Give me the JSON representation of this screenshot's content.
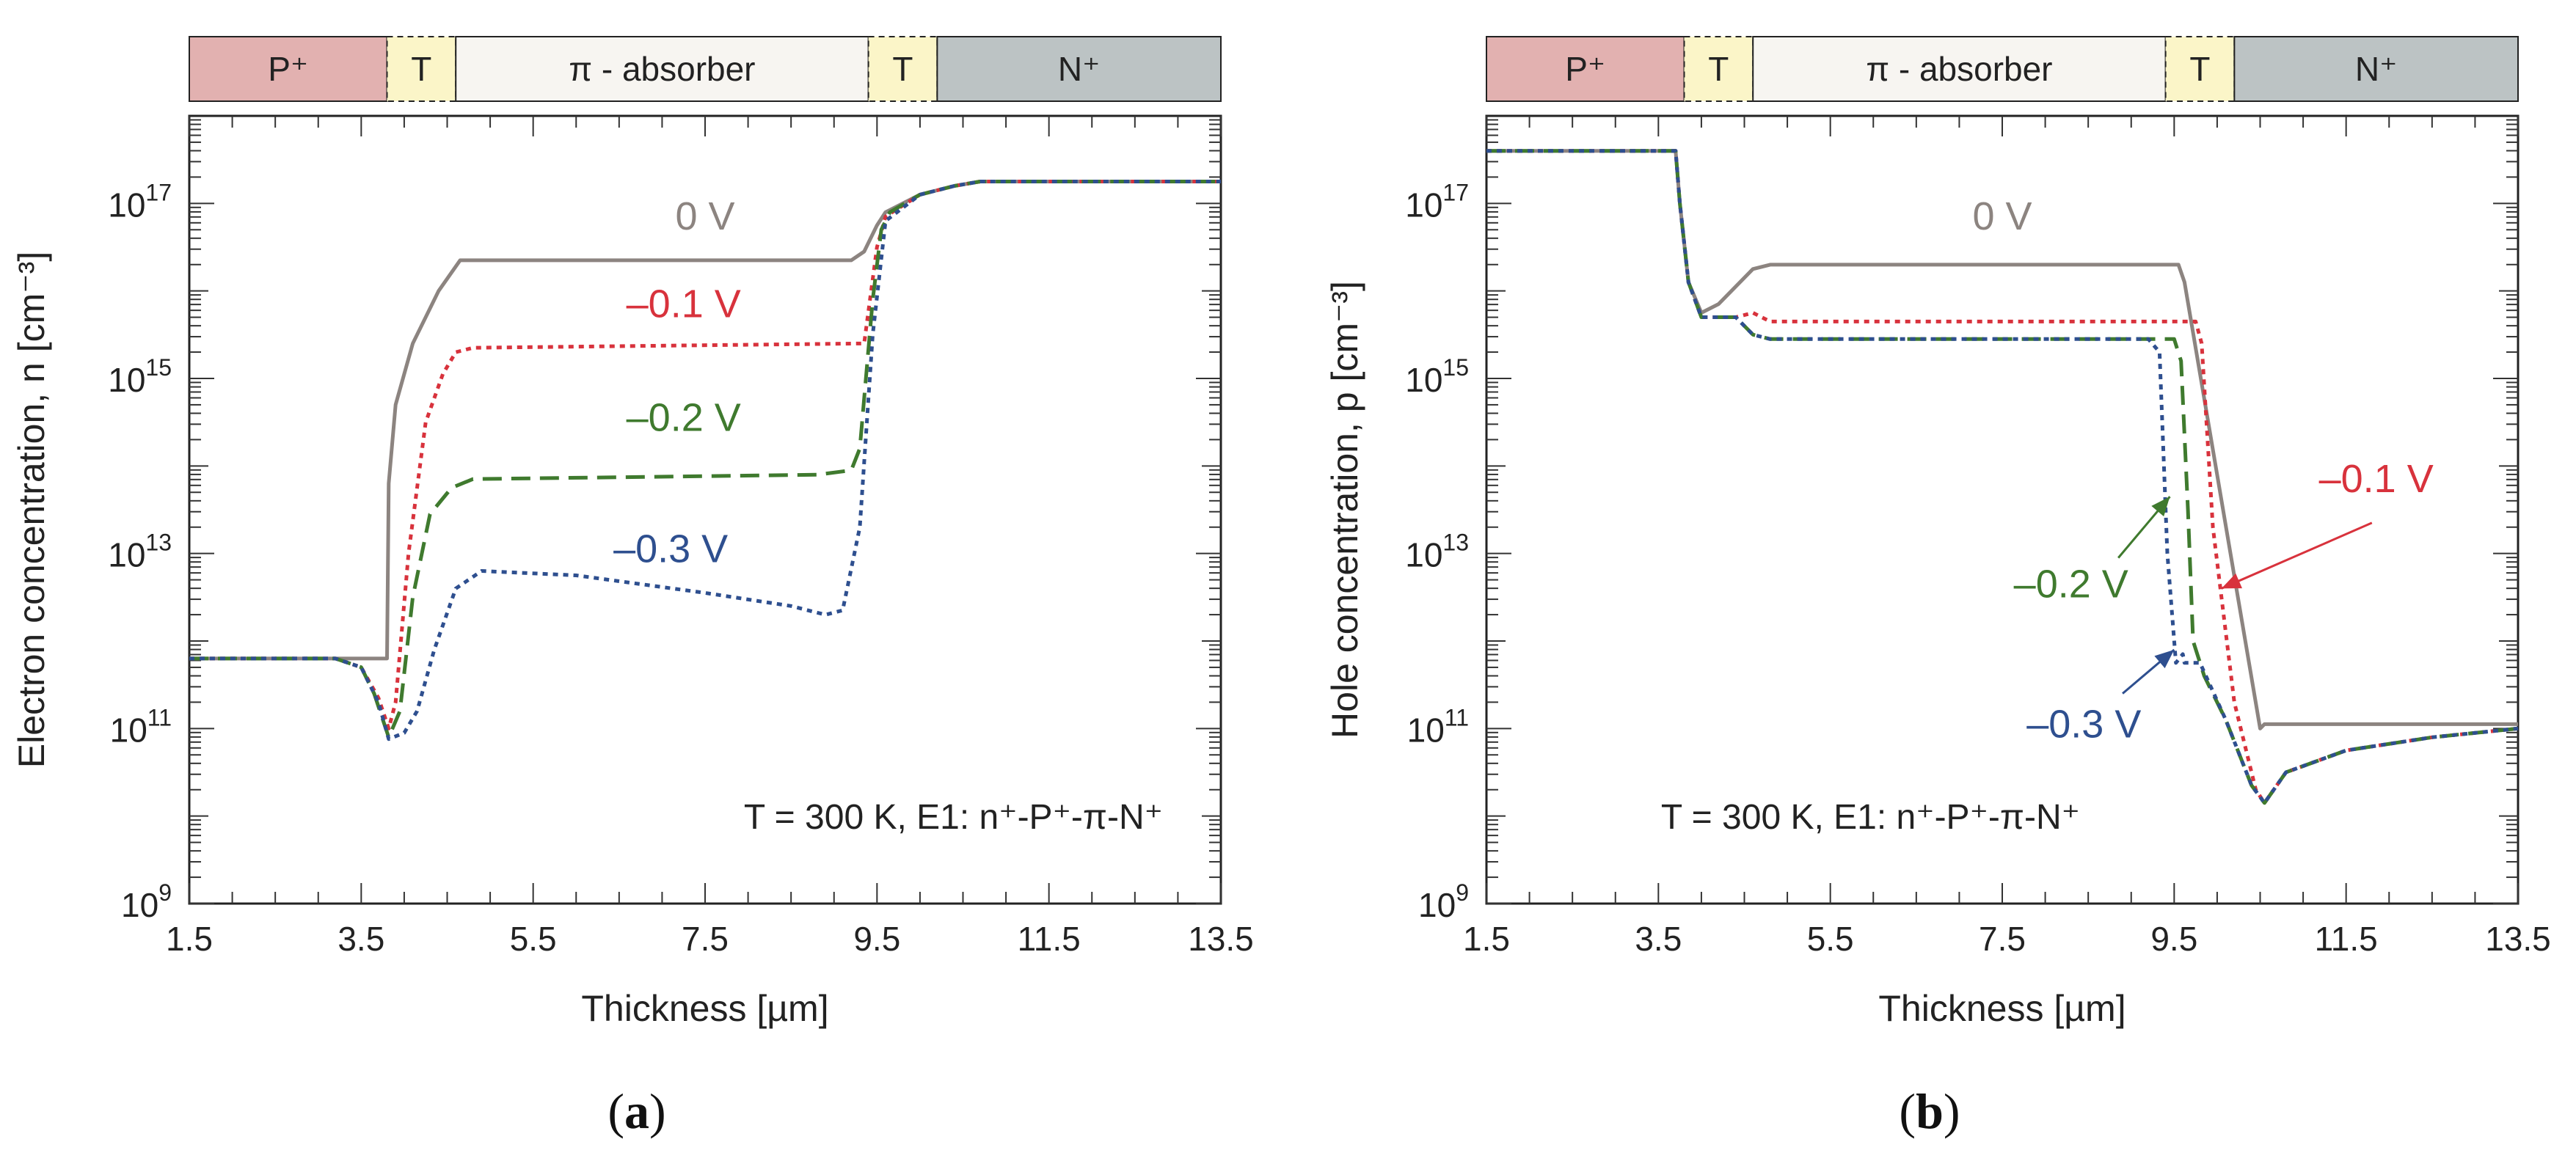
{
  "colors": {
    "zero": "#8c8480",
    "m01": "#d8323c",
    "m02": "#3f7a2e",
    "m03": "#2e4f8f",
    "p_plus": "#e2b1b0",
    "t_layer": "#fbf5c8",
    "absorber": "#f7f5f1",
    "n_plus": "#bcc3c4"
  },
  "panels": [
    {
      "letter": "a",
      "bands": [
        {
          "label": "P⁺",
          "from": 1.5,
          "to": 3.8,
          "color": "p_plus",
          "dashed": false
        },
        {
          "label": "T",
          "from": 3.8,
          "to": 4.6,
          "color": "t_layer",
          "dashed": true
        },
        {
          "label": "π - absorber",
          "from": 4.6,
          "to": 9.4,
          "color": "absorber",
          "dashed": false
        },
        {
          "label": "T",
          "from": 9.4,
          "to": 10.2,
          "color": "t_layer",
          "dashed": true
        },
        {
          "label": "N⁺",
          "from": 10.2,
          "to": 13.5,
          "color": "n_plus",
          "dashed": false
        }
      ],
      "annotation": "T = 300 K, E1: n⁺-P⁺-π-N⁺",
      "series_labels": [
        {
          "text": "0 V",
          "x": 7.5,
          "y": 16.7,
          "color": "zero"
        },
        {
          "text": "–0.1 V",
          "x": 7.25,
          "y": 15.7,
          "color": "m01"
        },
        {
          "text": "–0.2 V",
          "x": 7.25,
          "y": 14.4,
          "color": "m02"
        },
        {
          "text": "–0.3 V",
          "x": 7.1,
          "y": 12.9,
          "color": "m03"
        }
      ],
      "arrows": []
    },
    {
      "letter": "b",
      "bands": [
        {
          "label": "P⁺",
          "from": 1.5,
          "to": 3.8,
          "color": "p_plus",
          "dashed": false
        },
        {
          "label": "T",
          "from": 3.8,
          "to": 4.6,
          "color": "t_layer",
          "dashed": true
        },
        {
          "label": "π - absorber",
          "from": 4.6,
          "to": 9.4,
          "color": "absorber",
          "dashed": false
        },
        {
          "label": "T",
          "from": 9.4,
          "to": 10.2,
          "color": "t_layer",
          "dashed": true
        },
        {
          "label": "N⁺",
          "from": 10.2,
          "to": 13.5,
          "color": "n_plus",
          "dashed": false
        }
      ],
      "annotation": "T = 300 K, E1: n⁺-P⁺-π-N⁺",
      "series_labels": [
        {
          "text": "0 V",
          "x": 7.5,
          "y": 16.7,
          "color": "zero"
        },
        {
          "text": "–0.1 V",
          "x": 11.85,
          "y": 13.7,
          "color": "m01"
        },
        {
          "text": "–0.2 V",
          "x": 8.3,
          "y": 12.5,
          "color": "m02"
        },
        {
          "text": "–0.3 V",
          "x": 8.45,
          "y": 10.9,
          "color": "m03"
        }
      ],
      "arrows": [
        {
          "from": [
            11.8,
            13.35
          ],
          "to": [
            10.05,
            12.6
          ],
          "color": "m01"
        },
        {
          "from": [
            8.85,
            12.95
          ],
          "to": [
            9.45,
            13.65
          ],
          "color": "m02"
        },
        {
          "from": [
            8.9,
            11.4
          ],
          "to": [
            9.5,
            11.9
          ],
          "color": "m03"
        }
      ]
    }
  ],
  "chart_data": [
    {
      "type": "line",
      "xlabel": "Thickness [µm]",
      "ylabel": "Electron concentration, n [cm⁻³]",
      "xlim": [
        1.5,
        13.5
      ],
      "ylim": [
        1000000000.0,
        1e+18
      ],
      "yscale": "log",
      "xticks": [
        "1.5",
        "3.5",
        "5.5",
        "7.5",
        "9.5",
        "11.5",
        "13.5"
      ],
      "yticks": [
        {
          "base": "10",
          "exp": "9",
          "value": 9
        },
        {
          "base": "10",
          "exp": "11",
          "value": 11
        },
        {
          "base": "10",
          "exp": "13",
          "value": 13
        },
        {
          "base": "10",
          "exp": "15",
          "value": 15
        },
        {
          "base": "10",
          "exp": "17",
          "value": 17
        }
      ],
      "series": [
        {
          "name": "0 V",
          "color": "zero",
          "dash": "solid",
          "x": [
            1.5,
            3.5,
            3.8,
            3.82,
            3.9,
            4.1,
            4.4,
            4.65,
            9.2,
            9.35,
            9.5,
            9.6,
            10.0,
            10.4,
            10.7,
            11.5,
            13.5
          ],
          "y": [
            11.8,
            11.8,
            11.8,
            13.8,
            14.7,
            15.4,
            16.0,
            16.35,
            16.35,
            16.45,
            16.75,
            16.9,
            17.1,
            17.2,
            17.25,
            17.25,
            17.25
          ]
        },
        {
          "name": "–0.1 V",
          "color": "m01",
          "dash": "dotted",
          "x": [
            1.5,
            3.2,
            3.5,
            3.7,
            3.82,
            3.9,
            4.05,
            4.25,
            4.45,
            4.6,
            4.8,
            9.35,
            9.5,
            9.6,
            10.0,
            10.4,
            10.7,
            11.5,
            13.5
          ],
          "y": [
            11.8,
            11.8,
            11.7,
            11.35,
            11.0,
            11.3,
            13.0,
            14.5,
            15.05,
            15.3,
            15.35,
            15.4,
            16.5,
            16.85,
            17.1,
            17.2,
            17.25,
            17.25,
            17.25
          ]
        },
        {
          "name": "–0.2 V",
          "color": "m02",
          "dash": "dashed",
          "x": [
            1.5,
            3.2,
            3.5,
            3.65,
            3.82,
            3.95,
            4.1,
            4.3,
            4.55,
            4.8,
            8.8,
            9.2,
            9.3,
            9.45,
            9.55,
            9.65,
            10.0,
            10.4,
            10.7,
            11.5,
            13.5
          ],
          "y": [
            11.8,
            11.8,
            11.7,
            11.4,
            10.9,
            11.2,
            12.5,
            13.45,
            13.75,
            13.85,
            13.9,
            13.95,
            14.2,
            15.9,
            16.7,
            16.9,
            17.1,
            17.2,
            17.25,
            17.25,
            17.25
          ]
        },
        {
          "name": "–0.3 V",
          "color": "m03",
          "dash": "dotted",
          "x": [
            1.5,
            3.2,
            3.5,
            3.7,
            3.82,
            4.0,
            4.15,
            4.35,
            4.6,
            4.9,
            6.0,
            7.5,
            8.5,
            8.9,
            9.1,
            9.3,
            9.45,
            9.6,
            10.0,
            10.4,
            10.7,
            11.5,
            13.5
          ],
          "y": [
            11.8,
            11.8,
            11.7,
            11.3,
            10.88,
            10.95,
            11.2,
            11.9,
            12.6,
            12.8,
            12.75,
            12.55,
            12.4,
            12.3,
            12.35,
            13.3,
            15.5,
            16.8,
            17.1,
            17.2,
            17.25,
            17.25,
            17.25
          ]
        }
      ]
    },
    {
      "type": "line",
      "xlabel": "Thickness [µm]",
      "ylabel": "Hole concentration, p [cm⁻³]",
      "xlim": [
        1.5,
        13.5
      ],
      "ylim": [
        1000000000.0,
        1e+18
      ],
      "yscale": "log",
      "xticks": [
        "1.5",
        "3.5",
        "5.5",
        "7.5",
        "9.5",
        "11.5",
        "13.5"
      ],
      "yticks": [
        {
          "base": "10",
          "exp": "9",
          "value": 9
        },
        {
          "base": "10",
          "exp": "11",
          "value": 11
        },
        {
          "base": "10",
          "exp": "13",
          "value": 13
        },
        {
          "base": "10",
          "exp": "15",
          "value": 15
        },
        {
          "base": "10",
          "exp": "17",
          "value": 17
        }
      ],
      "series": [
        {
          "name": "0 V",
          "color": "zero",
          "dash": "solid",
          "x": [
            1.5,
            3.7,
            3.75,
            3.85,
            4.0,
            4.2,
            4.6,
            4.8,
            9.55,
            9.62,
            10.5,
            10.55,
            13.5
          ],
          "y": [
            17.6,
            17.6,
            17.0,
            16.1,
            15.75,
            15.85,
            16.25,
            16.3,
            16.3,
            16.1,
            11.0,
            11.05,
            11.05
          ]
        },
        {
          "name": "–0.1 V",
          "color": "m01",
          "dash": "dotted",
          "x": [
            1.5,
            3.7,
            3.75,
            3.85,
            4.0,
            4.4,
            4.6,
            4.8,
            9.75,
            9.82,
            9.95,
            10.2,
            10.45,
            10.55,
            10.8,
            11.5,
            12.5,
            13.5
          ],
          "y": [
            17.6,
            17.6,
            17.0,
            16.1,
            15.7,
            15.7,
            15.75,
            15.65,
            15.65,
            15.4,
            13.3,
            11.3,
            10.3,
            10.15,
            10.5,
            10.75,
            10.9,
            11.0
          ]
        },
        {
          "name": "–0.2 V",
          "color": "m02",
          "dash": "dashed",
          "x": [
            1.5,
            3.7,
            3.75,
            3.85,
            4.0,
            4.4,
            4.6,
            4.8,
            9.5,
            9.58,
            9.66,
            9.72,
            9.85,
            10.1,
            10.4,
            10.55,
            10.8,
            11.5,
            12.5,
            13.5
          ],
          "y": [
            17.6,
            17.6,
            17.0,
            16.1,
            15.7,
            15.7,
            15.5,
            15.45,
            15.45,
            15.2,
            13.5,
            12.0,
            11.6,
            11.1,
            10.35,
            10.15,
            10.5,
            10.75,
            10.9,
            11.0
          ]
        },
        {
          "name": "–0.3 V",
          "color": "m03",
          "dash": "dotted",
          "x": [
            1.5,
            3.7,
            3.75,
            3.85,
            4.0,
            4.4,
            4.6,
            4.8,
            9.2,
            9.33,
            9.42,
            9.52,
            9.6,
            9.62,
            9.8,
            10.1,
            10.4,
            10.55,
            10.8,
            11.5,
            12.5,
            13.5
          ],
          "y": [
            17.6,
            17.6,
            17.0,
            16.1,
            15.7,
            15.7,
            15.5,
            15.45,
            15.45,
            15.3,
            13.0,
            11.75,
            11.85,
            11.75,
            11.75,
            11.1,
            10.35,
            10.15,
            10.5,
            10.75,
            10.9,
            11.0
          ]
        }
      ]
    }
  ]
}
